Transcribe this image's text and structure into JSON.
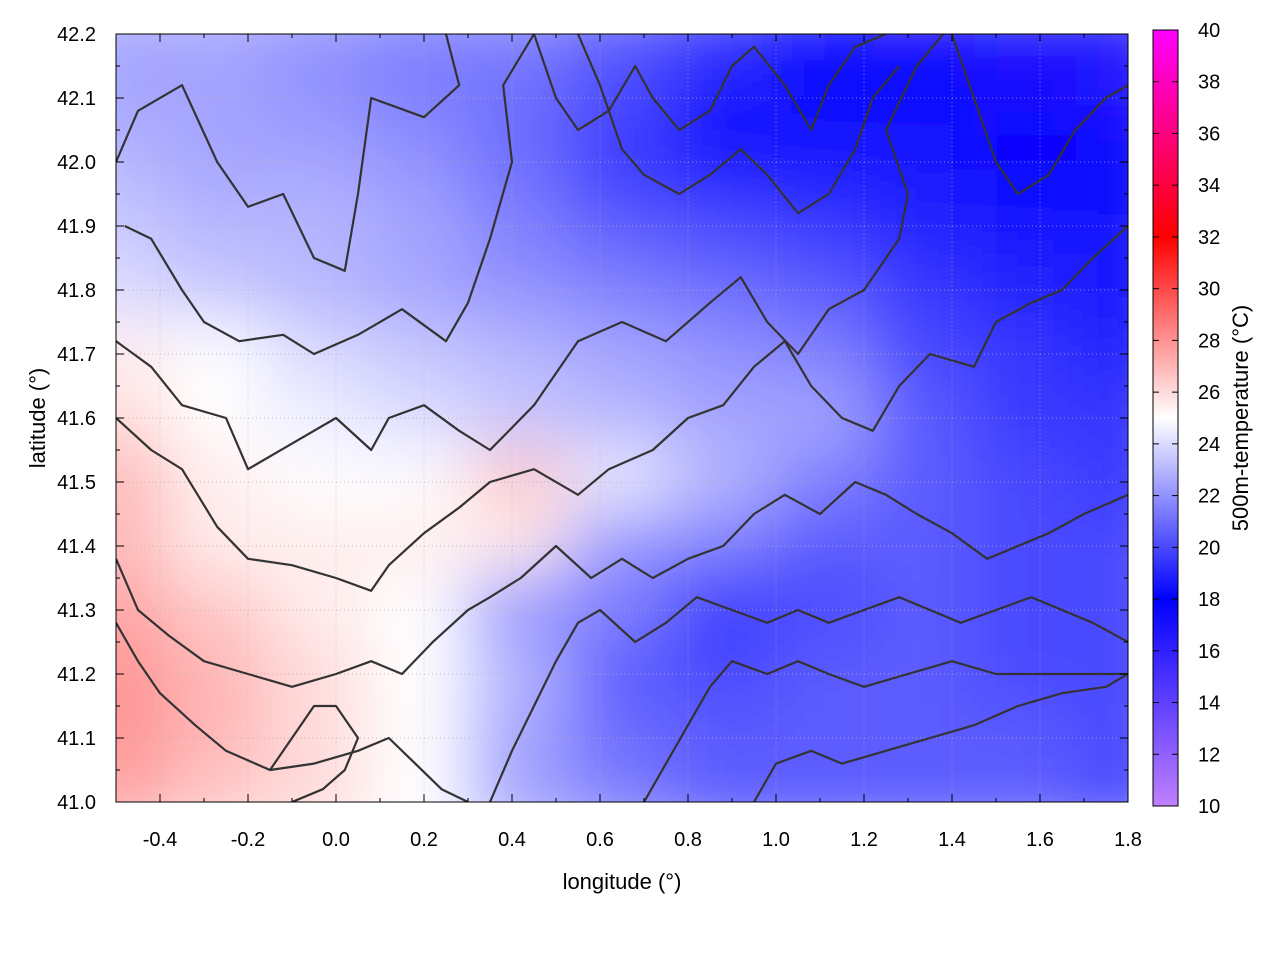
{
  "chart_data": {
    "type": "heatmap",
    "title": "",
    "xlabel": "longitude (°)",
    "ylabel": "latitude (°)",
    "xlim": [
      -0.5,
      1.8
    ],
    "ylim": [
      41.0,
      42.2
    ],
    "x_ticks": [
      -0.4,
      -0.2,
      0.0,
      0.2,
      0.4,
      0.6,
      0.8,
      1.0,
      1.2,
      1.4,
      1.6,
      1.8
    ],
    "x_tick_labels": [
      "-0.4",
      "-0.2",
      "0.0",
      "0.2",
      "0.4",
      "0.6",
      "0.8",
      "1.0",
      "1.2",
      "1.4",
      "1.6",
      "1.8"
    ],
    "y_ticks": [
      41.0,
      41.1,
      41.2,
      41.3,
      41.4,
      41.5,
      41.6,
      41.7,
      41.8,
      41.9,
      42.0,
      42.1,
      42.2
    ],
    "y_tick_labels": [
      "41.0",
      "41.1",
      "41.2",
      "41.3",
      "41.4",
      "41.5",
      "41.6",
      "41.7",
      "41.8",
      "41.9",
      "42.0",
      "42.1",
      "42.2"
    ],
    "grid": true,
    "colorbar": {
      "label": "500m-temperature (°C)",
      "range": [
        10,
        40
      ],
      "ticks": [
        10,
        12,
        14,
        16,
        18,
        20,
        22,
        24,
        26,
        28,
        30,
        32,
        34,
        36,
        38,
        40
      ],
      "tick_labels": [
        "10",
        "12",
        "14",
        "16",
        "18",
        "20",
        "22",
        "24",
        "26",
        "28",
        "30",
        "32",
        "34",
        "36",
        "38",
        "40"
      ],
      "palette": [
        {
          "value": 10,
          "color": "#c080ff"
        },
        {
          "value": 18,
          "color": "#0000ff"
        },
        {
          "value": 25,
          "color": "#ffffff"
        },
        {
          "value": 32,
          "color": "#ff0000"
        },
        {
          "value": 40,
          "color": "#ff00ff"
        }
      ]
    },
    "field_samples": {
      "lon": [
        -0.5,
        -0.27,
        -0.04,
        0.19,
        0.42,
        0.65,
        0.88,
        1.11,
        1.34,
        1.57,
        1.8
      ],
      "lat": [
        42.2,
        42.1,
        42.0,
        41.9,
        41.8,
        41.7,
        41.6,
        41.5,
        41.4,
        41.3,
        41.2,
        41.1,
        41.0
      ],
      "temperature": [
        [
          22.5,
          22.5,
          22.0,
          21.5,
          21.5,
          20.5,
          19.5,
          17.5,
          17.0,
          16.5,
          16.5
        ],
        [
          22.5,
          22.5,
          22.0,
          21.5,
          21.0,
          20.0,
          18.5,
          17.5,
          17.5,
          17.0,
          16.5
        ],
        [
          23.0,
          22.5,
          22.5,
          22.0,
          21.0,
          19.5,
          18.5,
          18.5,
          18.5,
          18.0,
          18.0
        ],
        [
          23.5,
          23.0,
          23.0,
          22.5,
          21.5,
          20.5,
          20.0,
          19.5,
          19.0,
          18.5,
          18.5
        ],
        [
          24.0,
          23.5,
          23.0,
          22.5,
          22.0,
          21.5,
          21.0,
          20.5,
          19.5,
          19.0,
          18.5
        ],
        [
          25.5,
          25.0,
          24.0,
          23.5,
          23.0,
          22.5,
          22.0,
          21.5,
          20.0,
          19.5,
          19.0
        ],
        [
          26.0,
          25.0,
          24.5,
          24.0,
          23.5,
          23.0,
          22.5,
          22.5,
          20.5,
          19.5,
          19.5
        ],
        [
          27.0,
          25.5,
          25.0,
          25.0,
          26.5,
          24.5,
          23.0,
          21.5,
          20.5,
          20.0,
          19.5
        ],
        [
          27.0,
          25.5,
          25.5,
          25.5,
          25.5,
          22.0,
          21.5,
          20.5,
          20.5,
          20.0,
          20.0
        ],
        [
          27.5,
          26.5,
          25.5,
          25.0,
          22.0,
          21.5,
          19.5,
          20.0,
          20.5,
          20.0,
          20.0
        ],
        [
          28.0,
          27.0,
          26.0,
          25.0,
          23.0,
          20.5,
          20.0,
          20.5,
          20.5,
          20.0,
          20.0
        ],
        [
          28.0,
          27.0,
          26.0,
          25.0,
          22.5,
          21.0,
          20.5,
          20.5,
          20.5,
          20.5,
          20.0
        ],
        [
          27.5,
          26.5,
          26.0,
          25.0,
          22.5,
          21.5,
          20.5,
          20.5,
          20.5,
          20.5,
          20.0
        ]
      ]
    },
    "contours": [
      [
        [
          -0.5,
          42.0
        ],
        [
          -0.45,
          42.08
        ],
        [
          -0.35,
          42.12
        ],
        [
          -0.27,
          42.0
        ],
        [
          -0.2,
          41.93
        ],
        [
          -0.12,
          41.95
        ],
        [
          -0.05,
          41.85
        ],
        [
          0.02,
          41.83
        ],
        [
          0.05,
          41.95
        ],
        [
          0.08,
          42.1
        ],
        [
          0.2,
          42.07
        ],
        [
          0.28,
          42.12
        ],
        [
          0.25,
          42.2
        ]
      ],
      [
        [
          -0.48,
          41.9
        ],
        [
          -0.42,
          41.88
        ],
        [
          -0.35,
          41.8
        ],
        [
          -0.3,
          41.75
        ],
        [
          -0.22,
          41.72
        ],
        [
          -0.12,
          41.73
        ],
        [
          -0.05,
          41.7
        ],
        [
          0.05,
          41.73
        ],
        [
          0.15,
          41.77
        ],
        [
          0.25,
          41.72
        ],
        [
          0.3,
          41.78
        ],
        [
          0.35,
          41.88
        ],
        [
          0.4,
          42.0
        ],
        [
          0.38,
          42.12
        ],
        [
          0.45,
          42.2
        ]
      ],
      [
        [
          -0.5,
          41.72
        ],
        [
          -0.42,
          41.68
        ],
        [
          -0.35,
          41.62
        ],
        [
          -0.25,
          41.6
        ],
        [
          -0.2,
          41.52
        ],
        [
          -0.1,
          41.56
        ],
        [
          0.0,
          41.6
        ],
        [
          0.08,
          41.55
        ],
        [
          0.12,
          41.6
        ],
        [
          0.2,
          41.62
        ],
        [
          0.28,
          41.58
        ],
        [
          0.35,
          41.55
        ],
        [
          0.45,
          41.62
        ],
        [
          0.55,
          41.72
        ],
        [
          0.65,
          41.75
        ],
        [
          0.75,
          41.72
        ],
        [
          0.85,
          41.78
        ],
        [
          0.92,
          41.82
        ],
        [
          0.98,
          41.75
        ],
        [
          1.05,
          41.7
        ],
        [
          1.12,
          41.77
        ],
        [
          1.2,
          41.8
        ],
        [
          1.28,
          41.88
        ],
        [
          1.3,
          41.95
        ],
        [
          1.25,
          42.05
        ],
        [
          1.32,
          42.15
        ],
        [
          1.38,
          42.2
        ]
      ],
      [
        [
          -0.5,
          41.6
        ],
        [
          -0.42,
          41.55
        ],
        [
          -0.35,
          41.52
        ],
        [
          -0.27,
          41.43
        ],
        [
          -0.2,
          41.38
        ],
        [
          -0.1,
          41.37
        ],
        [
          0.0,
          41.35
        ],
        [
          0.08,
          41.33
        ],
        [
          0.12,
          41.37
        ],
        [
          0.2,
          41.42
        ],
        [
          0.28,
          41.46
        ],
        [
          0.35,
          41.5
        ],
        [
          0.45,
          41.52
        ],
        [
          0.55,
          41.48
        ],
        [
          0.62,
          41.52
        ],
        [
          0.72,
          41.55
        ],
        [
          0.8,
          41.6
        ],
        [
          0.88,
          41.62
        ],
        [
          0.95,
          41.68
        ],
        [
          1.02,
          41.72
        ],
        [
          1.08,
          41.65
        ],
        [
          1.15,
          41.6
        ],
        [
          1.22,
          41.58
        ],
        [
          1.28,
          41.65
        ],
        [
          1.35,
          41.7
        ],
        [
          1.45,
          41.68
        ],
        [
          1.5,
          41.75
        ],
        [
          1.58,
          41.78
        ],
        [
          1.65,
          41.8
        ],
        [
          1.72,
          41.85
        ],
        [
          1.8,
          41.9
        ]
      ],
      [
        [
          -0.5,
          41.38
        ],
        [
          -0.45,
          41.3
        ],
        [
          -0.38,
          41.26
        ],
        [
          -0.3,
          41.22
        ],
        [
          -0.2,
          41.2
        ],
        [
          -0.1,
          41.18
        ],
        [
          0.0,
          41.2
        ],
        [
          0.08,
          41.22
        ],
        [
          0.15,
          41.2
        ],
        [
          0.22,
          41.25
        ],
        [
          0.3,
          41.3
        ],
        [
          0.35,
          41.32
        ],
        [
          0.42,
          41.35
        ],
        [
          0.5,
          41.4
        ],
        [
          0.58,
          41.35
        ],
        [
          0.65,
          41.38
        ],
        [
          0.72,
          41.35
        ],
        [
          0.8,
          41.38
        ],
        [
          0.88,
          41.4
        ],
        [
          0.95,
          41.45
        ],
        [
          1.02,
          41.48
        ],
        [
          1.1,
          41.45
        ],
        [
          1.18,
          41.5
        ],
        [
          1.25,
          41.48
        ],
        [
          1.32,
          41.45
        ],
        [
          1.4,
          41.42
        ],
        [
          1.48,
          41.38
        ],
        [
          1.55,
          41.4
        ],
        [
          1.62,
          41.42
        ],
        [
          1.7,
          41.45
        ],
        [
          1.8,
          41.48
        ]
      ],
      [
        [
          -0.5,
          41.28
        ],
        [
          -0.45,
          41.22
        ],
        [
          -0.4,
          41.17
        ],
        [
          -0.32,
          41.12
        ],
        [
          -0.25,
          41.08
        ],
        [
          -0.15,
          41.05
        ],
        [
          -0.05,
          41.06
        ],
        [
          0.05,
          41.08
        ],
        [
          0.12,
          41.1
        ],
        [
          0.18,
          41.06
        ],
        [
          0.24,
          41.02
        ],
        [
          0.3,
          41.0
        ]
      ],
      [
        [
          0.35,
          41.0
        ],
        [
          0.4,
          41.08
        ],
        [
          0.45,
          41.15
        ],
        [
          0.5,
          41.22
        ],
        [
          0.55,
          41.28
        ],
        [
          0.6,
          41.3
        ],
        [
          0.68,
          41.25
        ],
        [
          0.75,
          41.28
        ],
        [
          0.82,
          41.32
        ],
        [
          0.9,
          41.3
        ],
        [
          0.98,
          41.28
        ],
        [
          1.05,
          41.3
        ],
        [
          1.12,
          41.28
        ],
        [
          1.2,
          41.3
        ],
        [
          1.28,
          41.32
        ],
        [
          1.35,
          41.3
        ],
        [
          1.42,
          41.28
        ],
        [
          1.5,
          41.3
        ],
        [
          1.58,
          41.32
        ],
        [
          1.65,
          41.3
        ],
        [
          1.72,
          41.28
        ],
        [
          1.8,
          41.25
        ]
      ],
      [
        [
          0.7,
          41.0
        ],
        [
          0.75,
          41.06
        ],
        [
          0.8,
          41.12
        ],
        [
          0.85,
          41.18
        ],
        [
          0.9,
          41.22
        ],
        [
          0.98,
          41.2
        ],
        [
          1.05,
          41.22
        ],
        [
          1.12,
          41.2
        ],
        [
          1.2,
          41.18
        ],
        [
          1.3,
          41.2
        ],
        [
          1.4,
          41.22
        ],
        [
          1.5,
          41.2
        ],
        [
          1.6,
          41.2
        ],
        [
          1.7,
          41.2
        ],
        [
          1.8,
          41.2
        ]
      ],
      [
        [
          0.95,
          41.0
        ],
        [
          1.0,
          41.06
        ],
        [
          1.08,
          41.08
        ],
        [
          1.15,
          41.06
        ],
        [
          1.25,
          41.08
        ],
        [
          1.35,
          41.1
        ],
        [
          1.45,
          41.12
        ],
        [
          1.55,
          41.15
        ],
        [
          1.65,
          41.17
        ],
        [
          1.75,
          41.18
        ],
        [
          1.8,
          41.2
        ]
      ],
      [
        [
          0.45,
          42.2
        ],
        [
          0.5,
          42.1
        ],
        [
          0.55,
          42.05
        ],
        [
          0.62,
          42.08
        ],
        [
          0.68,
          42.15
        ],
        [
          0.72,
          42.1
        ],
        [
          0.78,
          42.05
        ],
        [
          0.85,
          42.08
        ],
        [
          0.9,
          42.15
        ],
        [
          0.95,
          42.18
        ],
        [
          1.02,
          42.12
        ],
        [
          1.08,
          42.05
        ],
        [
          1.12,
          42.12
        ],
        [
          1.18,
          42.18
        ],
        [
          1.25,
          42.2
        ]
      ],
      [
        [
          0.55,
          42.2
        ],
        [
          0.6,
          42.12
        ],
        [
          0.65,
          42.02
        ],
        [
          0.7,
          41.98
        ],
        [
          0.78,
          41.95
        ],
        [
          0.85,
          41.98
        ],
        [
          0.92,
          42.02
        ],
        [
          0.98,
          41.98
        ],
        [
          1.05,
          41.92
        ],
        [
          1.12,
          41.95
        ],
        [
          1.18,
          42.02
        ],
        [
          1.22,
          42.1
        ],
        [
          1.28,
          42.15
        ]
      ],
      [
        [
          1.4,
          42.2
        ],
        [
          1.45,
          42.1
        ],
        [
          1.5,
          42.0
        ],
        [
          1.55,
          41.95
        ],
        [
          1.62,
          41.98
        ],
        [
          1.68,
          42.05
        ],
        [
          1.75,
          42.1
        ],
        [
          1.8,
          42.12
        ]
      ],
      [
        [
          -0.15,
          41.05
        ],
        [
          -0.1,
          41.1
        ],
        [
          -0.05,
          41.15
        ],
        [
          0.0,
          41.15
        ],
        [
          0.05,
          41.1
        ],
        [
          0.02,
          41.05
        ],
        [
          -0.03,
          41.02
        ],
        [
          -0.1,
          41.0
        ]
      ]
    ]
  }
}
